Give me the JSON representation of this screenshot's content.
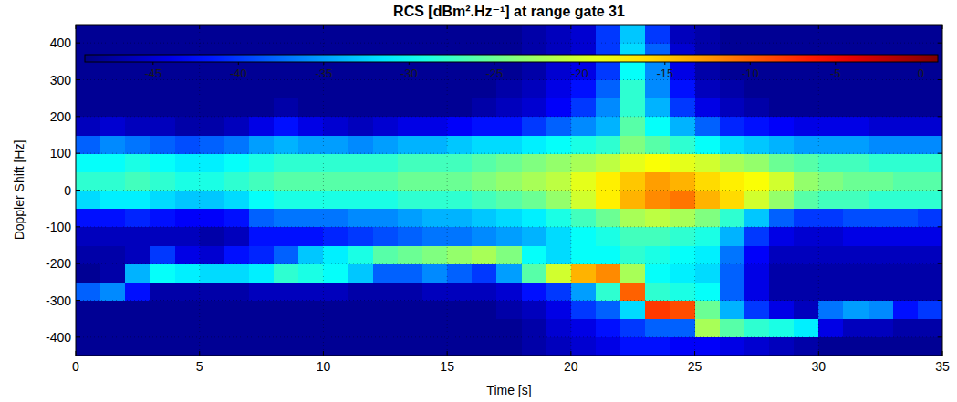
{
  "chart_data": {
    "type": "heatmap",
    "title": "RCS [dBm².Hz⁻¹] at range gate 31",
    "x_label": "Time [s]",
    "y_label": "Doppler Shift [Hz]",
    "xlim": [
      0,
      35
    ],
    "xticks": [
      0,
      5,
      10,
      15,
      20,
      25,
      30,
      35
    ],
    "ylim": [
      -450,
      450
    ],
    "yticks": [
      -400,
      -300,
      -200,
      -100,
      0,
      100,
      200,
      300,
      400
    ],
    "grid": true,
    "x": [
      0.5,
      1.5,
      2.5,
      3.5,
      4.5,
      5.5,
      6.5,
      7.5,
      8.5,
      9.5,
      10.5,
      11.5,
      12.5,
      13.5,
      14.5,
      15.5,
      16.5,
      17.5,
      18.5,
      19.5,
      20.5,
      21.5,
      22.5,
      23.5,
      24.5,
      25.5,
      26.5,
      27.5,
      28.5,
      29.5,
      30.5,
      31.5,
      32.5,
      33.5,
      34.5
    ],
    "y": [
      -425,
      -375,
      -325,
      -275,
      -225,
      -175,
      -125,
      -75,
      -25,
      25,
      75,
      125,
      175,
      225,
      275,
      325,
      375,
      425
    ],
    "z": [
      [
        -48,
        -48,
        -48,
        -38,
        -48,
        -47,
        -46,
        -42,
        -32,
        -28,
        -30,
        -38,
        -46,
        -48,
        -48,
        -48,
        -48,
        -48
      ],
      [
        -48,
        -48,
        -48,
        -36,
        -47,
        -47,
        -46,
        -42,
        -31,
        -28,
        -30,
        -36,
        -45,
        -48,
        -48,
        -48,
        -48,
        -48
      ],
      [
        -48,
        -48,
        -48,
        -42,
        -34,
        -46,
        -46,
        -41,
        -31,
        -27,
        -29,
        -37,
        -46,
        -48,
        -48,
        -48,
        -48,
        -48
      ],
      [
        -48,
        -48,
        -48,
        -47,
        -30,
        -40,
        -46,
        -42,
        -32,
        -28,
        -30,
        -38,
        -46,
        -48,
        -48,
        -48,
        -48,
        -48
      ],
      [
        -48,
        -48,
        -48,
        -47,
        -31,
        -44,
        -46,
        -43,
        -33,
        -29,
        -31,
        -39,
        -47,
        -48,
        -48,
        -48,
        -48,
        -48
      ],
      [
        -48,
        -48,
        -48,
        -47,
        -32,
        -45,
        -47,
        -43,
        -33,
        -29,
        -31,
        -38,
        -47,
        -48,
        -48,
        -48,
        -48,
        -48
      ],
      [
        -48,
        -48,
        -48,
        -47,
        -32,
        -42,
        -46,
        -42,
        -32,
        -28,
        -30,
        -37,
        -46,
        -48,
        -48,
        -48,
        -48,
        -48
      ],
      [
        -48,
        -48,
        -48,
        -46,
        -31,
        -41,
        -42,
        -38,
        -30,
        -27,
        -29,
        -35,
        -44,
        -48,
        -48,
        -48,
        -48,
        -48
      ],
      [
        -48,
        -48,
        -48,
        -46,
        -28,
        -38,
        -42,
        -37,
        -29,
        -26,
        -28,
        -34,
        -42,
        -47,
        -48,
        -48,
        -48,
        -48
      ],
      [
        -48,
        -48,
        -48,
        -46,
        -29,
        -33,
        -42,
        -37,
        -29,
        -26,
        -28,
        -35,
        -44,
        -48,
        -48,
        -48,
        -48,
        -48
      ],
      [
        -48,
        -48,
        -48,
        -46,
        -30,
        -31,
        -41,
        -37,
        -29,
        -26,
        -28,
        -35,
        -45,
        -48,
        -48,
        -48,
        -48,
        -48
      ],
      [
        -48,
        -48,
        -48,
        -47,
        -33,
        -29,
        -40,
        -36,
        -29,
        -26,
        -28,
        -36,
        -46,
        -48,
        -48,
        -48,
        -48,
        -48
      ],
      [
        -48,
        -48,
        -48,
        -47,
        -38,
        -26,
        -39,
        -36,
        -29,
        -26,
        -28,
        -35,
        -45,
        -48,
        -48,
        -48,
        -48,
        -48
      ],
      [
        -48,
        -48,
        -48,
        -47,
        -38,
        -25,
        -38,
        -35,
        -28,
        -25,
        -27,
        -34,
        -44,
        -48,
        -48,
        -48,
        -48,
        -48
      ],
      [
        -48,
        -48,
        -48,
        -46,
        -36,
        -24,
        -37,
        -34,
        -28,
        -25,
        -27,
        -34,
        -44,
        -48,
        -48,
        -48,
        -48,
        -48
      ],
      [
        -48,
        -48,
        -48,
        -46,
        -38,
        -23,
        -37,
        -34,
        -28,
        -25,
        -27,
        -33,
        -43,
        -48,
        -48,
        -48,
        -48,
        -48
      ],
      [
        -48,
        -48,
        -48,
        -46,
        -40,
        -22,
        -36,
        -33,
        -27,
        -24,
        -26,
        -32,
        -42,
        -47,
        -48,
        -48,
        -48,
        -48
      ],
      [
        -48,
        -48,
        -47,
        -45,
        -35,
        -24,
        -35,
        -32,
        -26,
        -23,
        -25,
        -32,
        -42,
        -46,
        -47,
        -48,
        -48,
        -48
      ],
      [
        -47,
        -47,
        -46,
        -42,
        -26,
        -30,
        -34,
        -31,
        -25,
        -22,
        -24,
        -31,
        -40,
        -45,
        -46,
        -47,
        -47,
        -47
      ],
      [
        -46,
        -45,
        -44,
        -40,
        -20,
        -32,
        -32,
        -29,
        -23,
        -21,
        -23,
        -30,
        -38,
        -43,
        -44,
        -45,
        -46,
        -46
      ],
      [
        -45,
        -44,
        -40,
        -35,
        -14,
        -30,
        -30,
        -27,
        -20,
        -19,
        -22,
        -29,
        -36,
        -40,
        -42,
        -44,
        -45,
        -45
      ],
      [
        -44,
        -42,
        -38,
        -28,
        -12,
        -30,
        -29,
        -25,
        -17,
        -17,
        -21,
        -28,
        -34,
        -36,
        -38,
        -40,
        -40,
        -40
      ],
      [
        -42,
        -40,
        -32,
        -10,
        -22,
        -28,
        -27,
        -22,
        -14,
        -15,
        -19,
        -24,
        -26,
        -28,
        -28,
        -30,
        -32,
        -33
      ],
      [
        -42,
        -38,
        -8,
        -28,
        -30,
        -29,
        -27,
        -21,
        -12,
        -13,
        -18,
        -26,
        -30,
        -34,
        -36,
        -36,
        -38,
        -40
      ],
      [
        -43,
        -38,
        -9,
        -29,
        -31,
        -30,
        -28,
        -22,
        -11,
        -14,
        -19,
        -28,
        -34,
        -40,
        -42,
        -44,
        -45,
        -46
      ],
      [
        -43,
        -22,
        -25,
        -30,
        -32,
        -31,
        -29,
        -24,
        -14,
        -16,
        -20,
        -30,
        -38,
        -44,
        -46,
        -47,
        -47,
        -47
      ],
      [
        -44,
        -26,
        -34,
        -38,
        -38,
        -37,
        -34,
        -28,
        -16,
        -17,
        -22,
        -32,
        -41,
        -46,
        -47,
        -48,
        -48,
        -48
      ],
      [
        -45,
        -28,
        -40,
        -44,
        -44,
        -43,
        -40,
        -33,
        -20,
        -18,
        -23,
        -33,
        -42,
        -47,
        -48,
        -48,
        -48,
        -48
      ],
      [
        -46,
        -29,
        -44,
        -47,
        -47,
        -46,
        -44,
        -38,
        -23,
        -20,
        -25,
        -34,
        -43,
        -48,
        -48,
        -48,
        -48,
        -48
      ],
      [
        -47,
        -31,
        -46,
        -47,
        -47,
        -46,
        -45,
        -40,
        -26,
        -23,
        -26,
        -35,
        -44,
        -48,
        -48,
        -48,
        -48,
        -48
      ],
      [
        -48,
        -44,
        -37,
        -47,
        -47,
        -46,
        -45,
        -40,
        -27,
        -24,
        -27,
        -35,
        -44,
        -48,
        -48,
        -48,
        -48,
        -48
      ],
      [
        -48,
        -46,
        -35,
        -47,
        -47,
        -46,
        -44,
        -39,
        -27,
        -25,
        -27,
        -35,
        -44,
        -48,
        -48,
        -48,
        -48,
        -48
      ],
      [
        -48,
        -46,
        -36,
        -47,
        -47,
        -46,
        -44,
        -39,
        -28,
        -25,
        -28,
        -36,
        -45,
        -48,
        -48,
        -48,
        -48,
        -48
      ],
      [
        -48,
        -47,
        -42,
        -47,
        -47,
        -46,
        -44,
        -39,
        -28,
        -26,
        -28,
        -36,
        -45,
        -48,
        -48,
        -48,
        -48,
        -48
      ],
      [
        -48,
        -47,
        -40,
        -47,
        -47,
        -46,
        -44,
        -40,
        -28,
        -26,
        -28,
        -36,
        -45,
        -48,
        -48,
        -48,
        -48,
        -48
      ]
    ],
    "colorbar": {
      "range": [
        -49,
        1
      ],
      "ticks": [
        -45,
        -40,
        -35,
        -30,
        -25,
        -20,
        -15,
        -10,
        -5,
        0
      ]
    }
  }
}
